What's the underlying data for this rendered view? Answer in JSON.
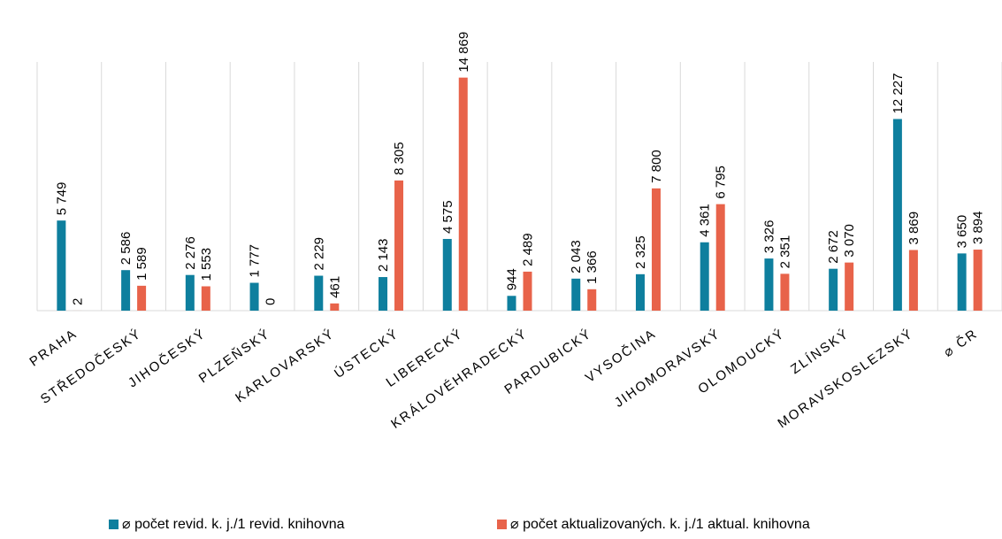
{
  "chart_data": {
    "type": "bar",
    "categories": [
      "PRAHA",
      "STŘEDOČESKÝ",
      "JIHOČESKÝ",
      "PLZEŇSKÝ",
      "KARLOVARSKÝ",
      "ÚSTECKÝ",
      "LIBERECKÝ",
      "KRÁLOVÉHRADECKÝ",
      "PARDUBICKÝ",
      "VYSOČINA",
      "JIHOMORAVSKÝ",
      "OLOMOUCKÝ",
      "ZLÍNSKÝ",
      "MORAVSKOSLEZSKÝ",
      "⌀ ČR"
    ],
    "series": [
      {
        "name": "⌀ počet revid. k. j./1 revid. knihovna",
        "color": "#0E7F9E",
        "values": [
          5749,
          2586,
          2276,
          1777,
          2229,
          2143,
          4575,
          944,
          2043,
          2325,
          4361,
          3326,
          2672,
          12227,
          3650
        ],
        "labels": [
          "5 749",
          "2 586",
          "2 276",
          "1 777",
          "2 229",
          "2 143",
          "4 575",
          "944",
          "2 043",
          "2 325",
          "4 361",
          "3 326",
          "2 672",
          "12 227",
          "3 650"
        ]
      },
      {
        "name": "⌀ počet aktualizovaných. k. j./1 aktual. knihovna",
        "color": "#E8634A",
        "values": [
          2,
          1589,
          1553,
          0,
          461,
          8305,
          14869,
          2489,
          1366,
          7800,
          6795,
          2351,
          3070,
          3869,
          3894
        ],
        "labels": [
          "2",
          "1 589",
          "1 553",
          "0",
          "461",
          "8 305",
          "14 869",
          "2 489",
          "1 366",
          "7 800",
          "6 795",
          "2 351",
          "3 070",
          "3 869",
          "3 894"
        ]
      }
    ],
    "title": "",
    "xlabel": "",
    "ylabel": "",
    "ylim": [
      0,
      16000
    ],
    "grid": "vertical category separators",
    "legend": "bottom"
  }
}
